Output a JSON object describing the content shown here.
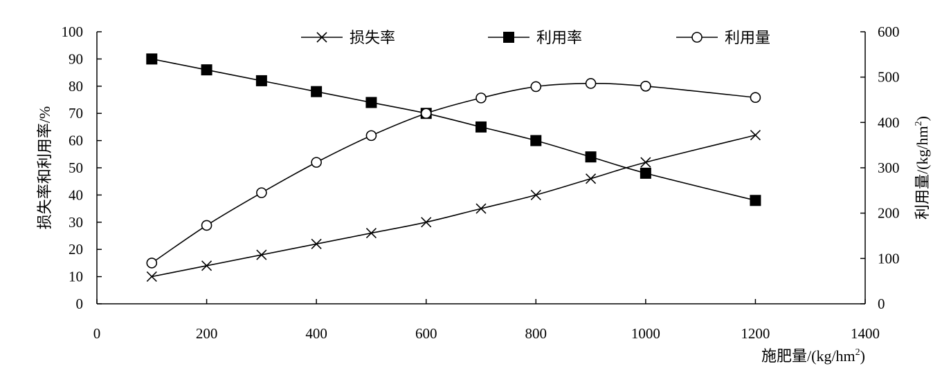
{
  "chart_data": {
    "type": "line",
    "x_axis": {
      "label": "施肥量/(kg/hm",
      "label_sup": "2",
      "label_close": ")",
      "range": [
        0,
        1400
      ],
      "ticks": [
        "0",
        "200",
        "400",
        "600",
        "800",
        "1000",
        "1200",
        "1400"
      ]
    },
    "y_left": {
      "label": "损失率和利用率/%",
      "range": [
        0,
        100
      ],
      "ticks": [
        "0",
        "10",
        "20",
        "30",
        "40",
        "50",
        "60",
        "70",
        "80",
        "90",
        "100"
      ]
    },
    "y_right": {
      "label": "利用量/(kg/hm",
      "label_sup": "2",
      "label_close": ")",
      "range": [
        0,
        600
      ],
      "ticks": [
        "0",
        "100",
        "200",
        "300",
        "400",
        "500",
        "600"
      ]
    },
    "legend_position": "top",
    "grid": false,
    "series": [
      {
        "name": "损失率",
        "axis": "left",
        "marker": "x",
        "x": [
          100,
          200,
          300,
          400,
          500,
          600,
          700,
          800,
          900,
          1000,
          1200
        ],
        "values": [
          10,
          14,
          18,
          22,
          26,
          30,
          35,
          40,
          46,
          52,
          62
        ]
      },
      {
        "name": "利用率",
        "axis": "left",
        "marker": "square",
        "x": [
          100,
          200,
          300,
          400,
          500,
          600,
          700,
          800,
          900,
          1000,
          1200
        ],
        "values": [
          90,
          86,
          82,
          78,
          74,
          70,
          65,
          60,
          54,
          48,
          38
        ]
      },
      {
        "name": "利用量",
        "axis": "right",
        "marker": "circle",
        "x": [
          100,
          200,
          300,
          400,
          500,
          600,
          700,
          800,
          900,
          1000,
          1200
        ],
        "values": [
          90,
          173,
          245,
          312,
          371,
          420,
          454,
          479,
          486,
          480,
          455
        ]
      }
    ]
  }
}
